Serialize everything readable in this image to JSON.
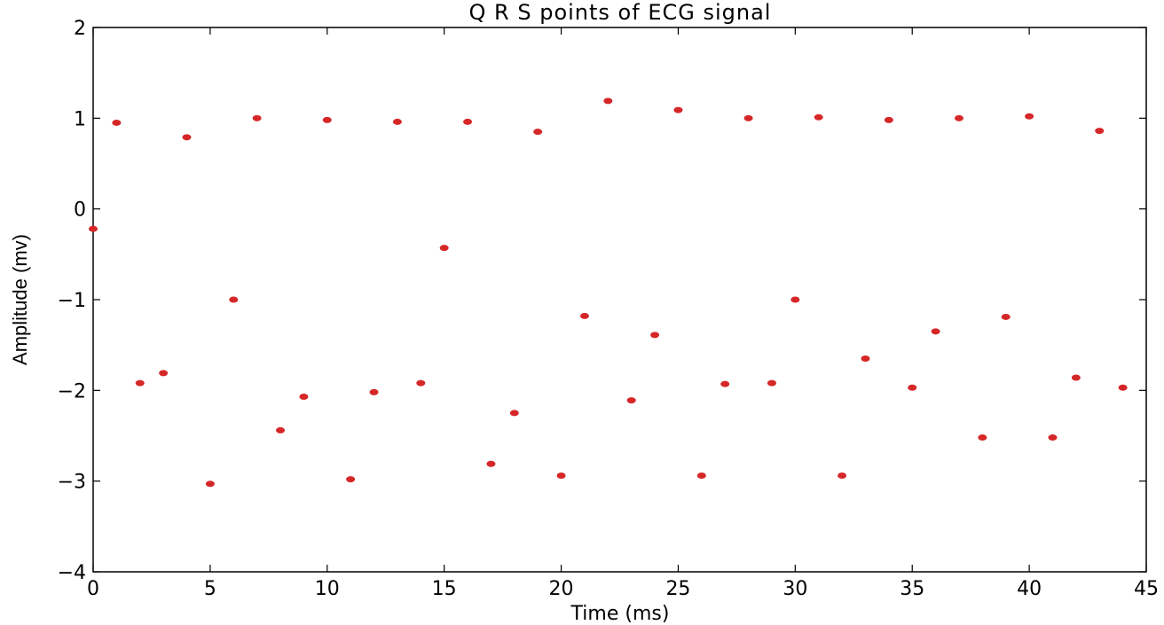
{
  "chart_data": {
    "type": "scatter",
    "title": "Q R S points of ECG signal",
    "xlabel": "Time (ms)",
    "ylabel": "Amplitude (mv)",
    "xlim": [
      0,
      45
    ],
    "ylim": [
      -4,
      2
    ],
    "xticks": [
      0,
      5,
      10,
      15,
      20,
      25,
      30,
      35,
      40,
      45
    ],
    "yticks": [
      2,
      1,
      0,
      -1,
      -2,
      -3,
      -4
    ],
    "xtick_labels": [
      "0",
      "5",
      "10",
      "15",
      "20",
      "25",
      "30",
      "35",
      "40",
      "45"
    ],
    "ytick_labels": [
      "2",
      "1",
      "0",
      "−1",
      "−2",
      "−3",
      "−4"
    ],
    "grid": false,
    "marker_color": "#d62728",
    "series": [
      {
        "x": [
          0,
          1,
          2,
          3,
          4,
          5,
          6,
          7,
          8,
          9,
          10,
          11,
          12,
          13,
          14,
          15,
          16,
          17,
          18,
          19,
          20,
          21,
          22,
          23,
          24,
          25,
          26,
          27,
          28,
          29,
          30,
          31,
          32,
          33,
          34,
          35,
          36,
          37,
          38,
          39,
          40,
          41,
          42,
          43,
          44
        ],
        "y": [
          -0.22,
          0.95,
          -1.92,
          -1.81,
          0.79,
          -3.03,
          -1.0,
          1.0,
          -2.44,
          -2.07,
          0.98,
          -2.98,
          -2.02,
          0.96,
          -1.92,
          -0.43,
          0.96,
          -2.81,
          -2.25,
          0.85,
          -2.94,
          -1.18,
          1.19,
          -2.11,
          -1.39,
          1.09,
          -2.94,
          -1.93,
          1.0,
          -1.92,
          -1.0,
          1.01,
          -2.94,
          -1.65,
          0.98,
          -1.97,
          -1.35,
          1.0,
          -2.52,
          -1.19,
          1.02,
          -2.52,
          -1.86,
          0.86,
          -1.97
        ]
      }
    ]
  }
}
